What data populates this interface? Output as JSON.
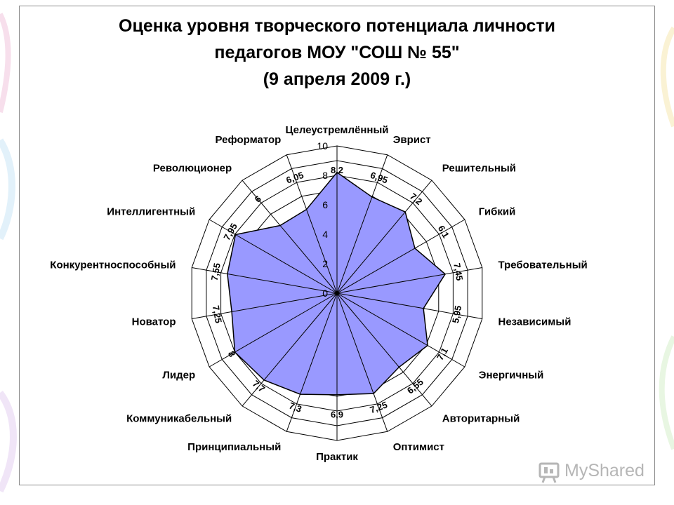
{
  "chart_data": {
    "type": "radar",
    "title": [
      "Оценка уровня творческого потенциала личности",
      "педагогов МОУ \"СОШ № 55\"",
      "(9 апреля 2009 г.)"
    ],
    "categories": [
      "Целеустремлённый",
      "Эврист",
      "Решительный",
      "Гибкий",
      "Требовательный",
      "Независимый",
      "Энергичный",
      "Авторитарный",
      "Оптимист",
      "Практик",
      "Принципиальный",
      "Коммуникабельный",
      "Лидер",
      "Новатор",
      "Конкурентноспособный",
      "Интеллигентный",
      "Революционер",
      "Реформатор"
    ],
    "values": [
      8.2,
      6.95,
      7.2,
      6.1,
      7.45,
      5.95,
      7.1,
      6.55,
      7.25,
      6.9,
      7.3,
      7.7,
      8,
      7.25,
      7.55,
      7.95,
      6,
      6.05
    ],
    "value_labels": [
      "8,2",
      "6,95",
      "7,2",
      "6,1",
      "7,45",
      "5,95",
      "7,1",
      "6,55",
      "7,25",
      "6,9",
      "7,3",
      "7,7",
      "8",
      "7,25",
      "7,55",
      "7,95",
      "6",
      "6,05"
    ],
    "radial_ticks": [
      "0",
      "2",
      "4",
      "6",
      "8",
      "10"
    ],
    "rmax": 10,
    "grid": true,
    "fill_color": "#9999ff",
    "line_color": "#000000"
  },
  "watermark": {
    "text": "MyShared"
  },
  "colors": {
    "frame": "#8a8a8a",
    "fill": "#9999ff"
  }
}
